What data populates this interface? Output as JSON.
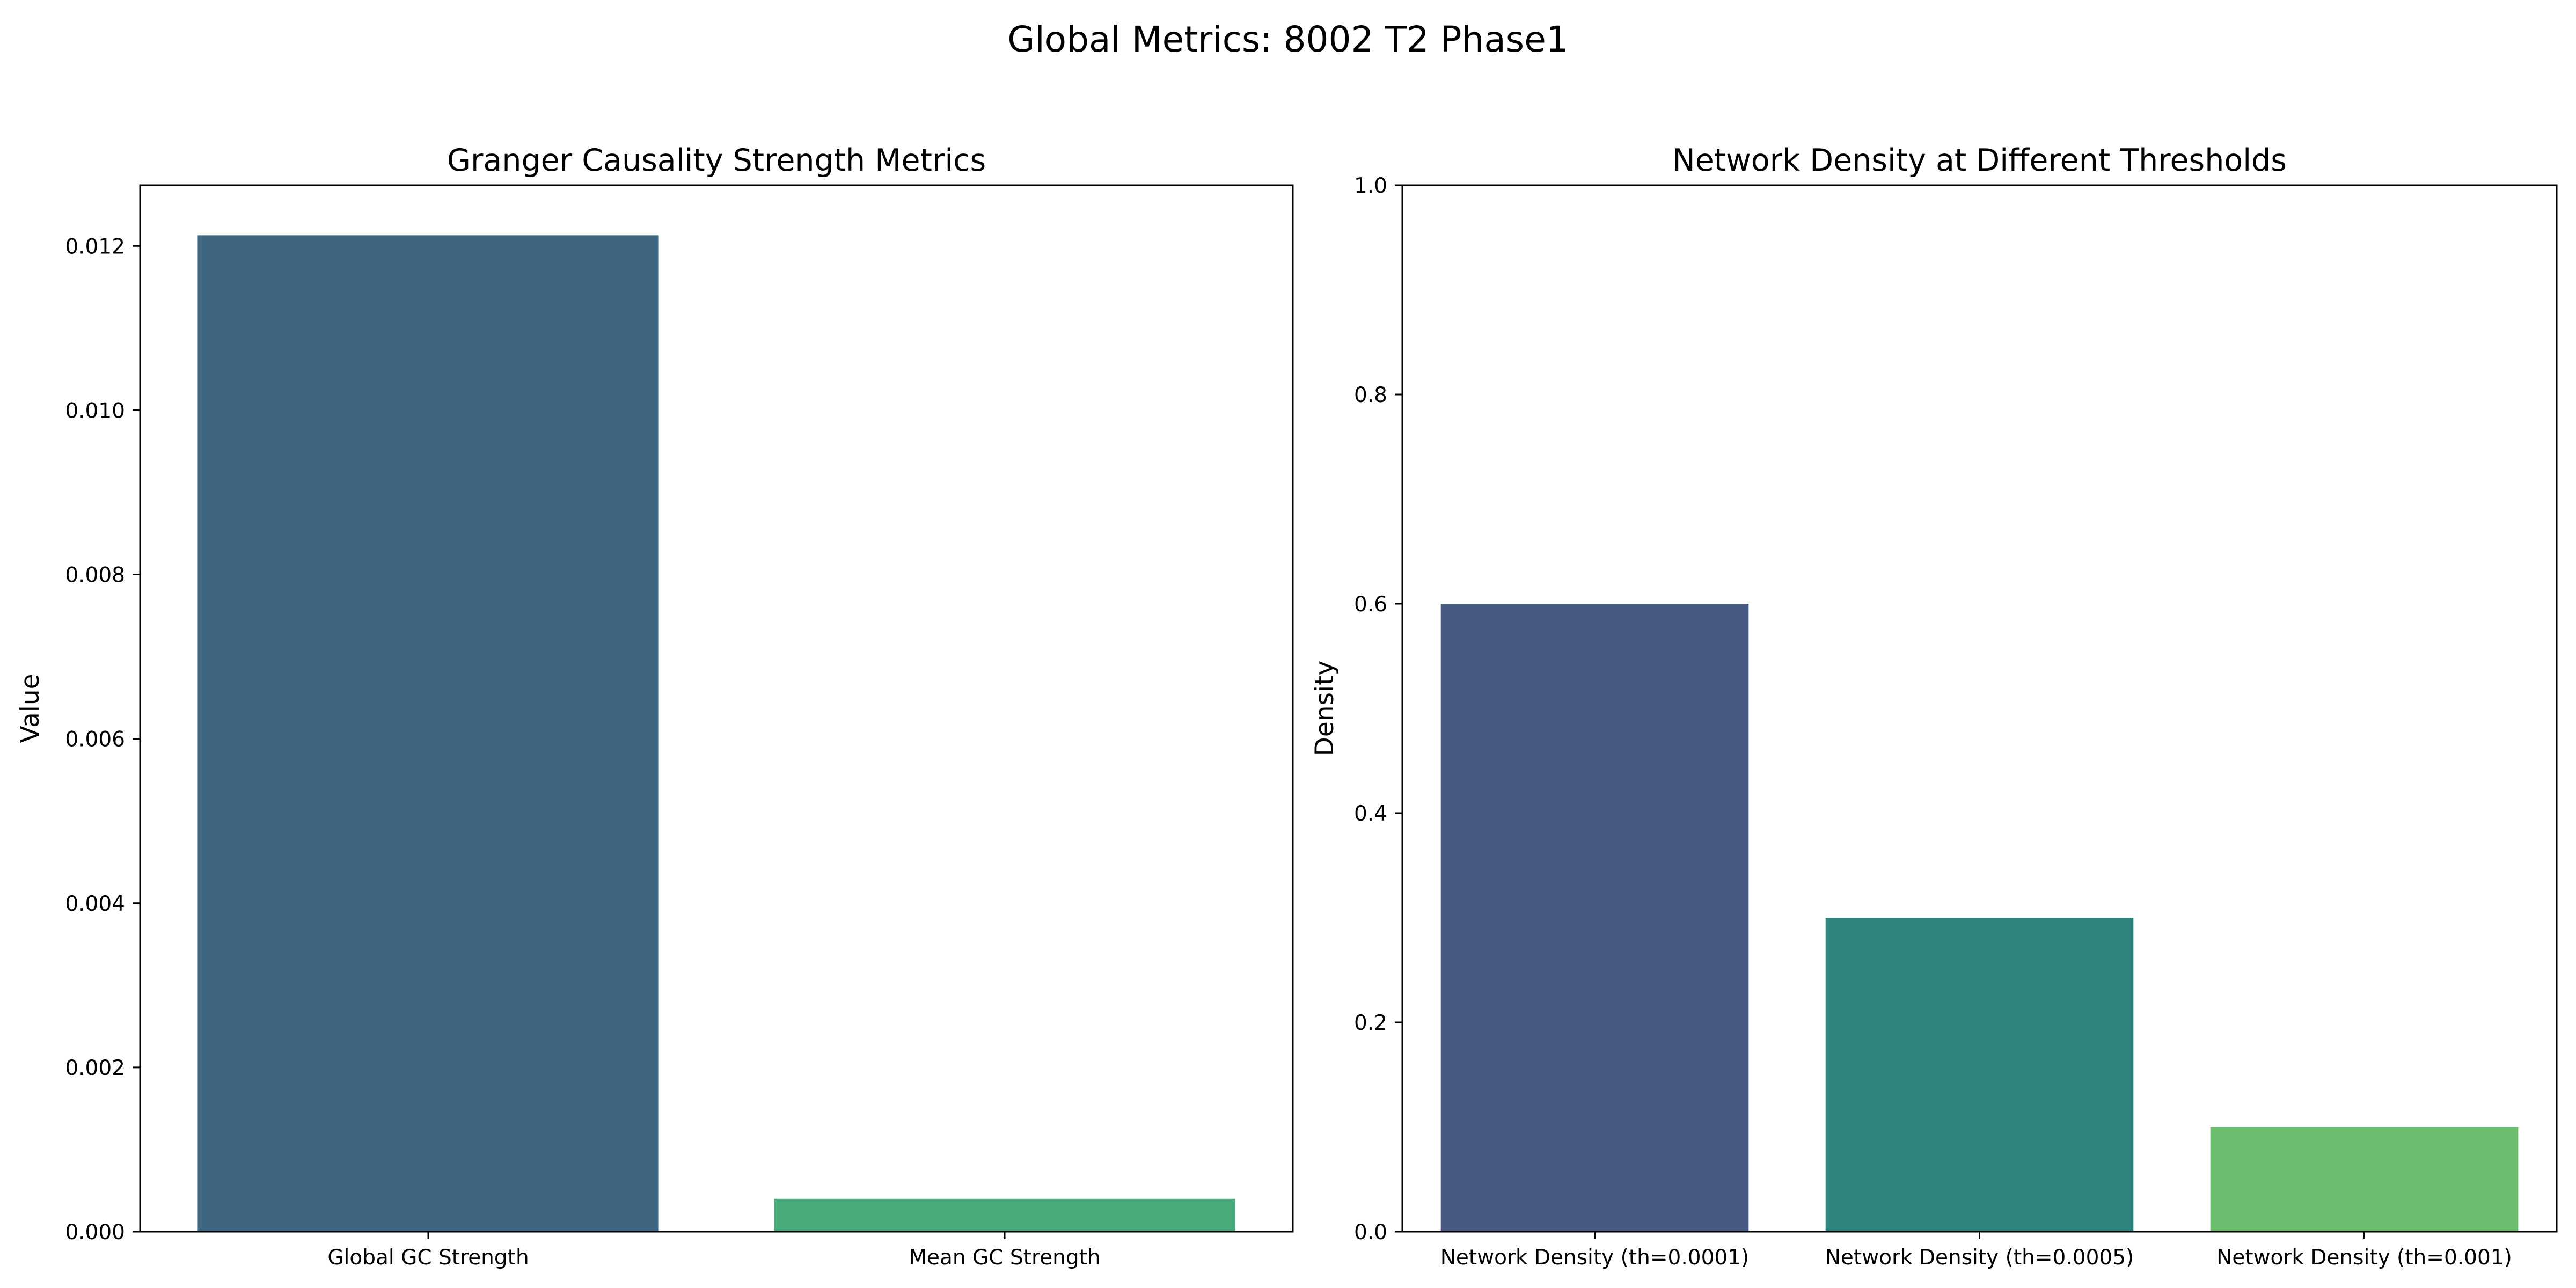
{
  "figure": {
    "suptitle": "Global Metrics: 8002 T2 Phase1"
  },
  "chart_data": [
    {
      "type": "bar",
      "title": "Granger Causality Strength Metrics",
      "xlabel": "",
      "ylabel": "Value",
      "categories": [
        "Global GC Strength",
        "Mean GC Strength"
      ],
      "values": [
        0.01213,
        0.0004
      ],
      "colors": [
        "#3e6680",
        "#48aa78"
      ],
      "ylim": [
        0,
        0.01274
      ],
      "yticks": [
        0.0,
        0.002,
        0.004,
        0.006,
        0.008,
        0.01,
        0.012
      ],
      "ytick_labels": [
        "0.000",
        "0.002",
        "0.004",
        "0.006",
        "0.008",
        "0.010",
        "0.012"
      ],
      "grid": false,
      "legend": "none"
    },
    {
      "type": "bar",
      "title": "Network Density at Different Thresholds",
      "xlabel": "",
      "ylabel": "Density",
      "categories": [
        "Network Density (th=0.0001)",
        "Network Density (th=0.0005)",
        "Network Density (th=0.001)"
      ],
      "values": [
        0.6,
        0.3,
        0.1
      ],
      "colors": [
        "#465a84",
        "#2f857e",
        "#6bbc6c"
      ],
      "ylim": [
        0,
        1.0
      ],
      "yticks": [
        0.0,
        0.2,
        0.4,
        0.6,
        0.8,
        1.0
      ],
      "ytick_labels": [
        "0.0",
        "0.2",
        "0.4",
        "0.6",
        "0.8",
        "1.0"
      ],
      "grid": false,
      "legend": "none"
    }
  ]
}
